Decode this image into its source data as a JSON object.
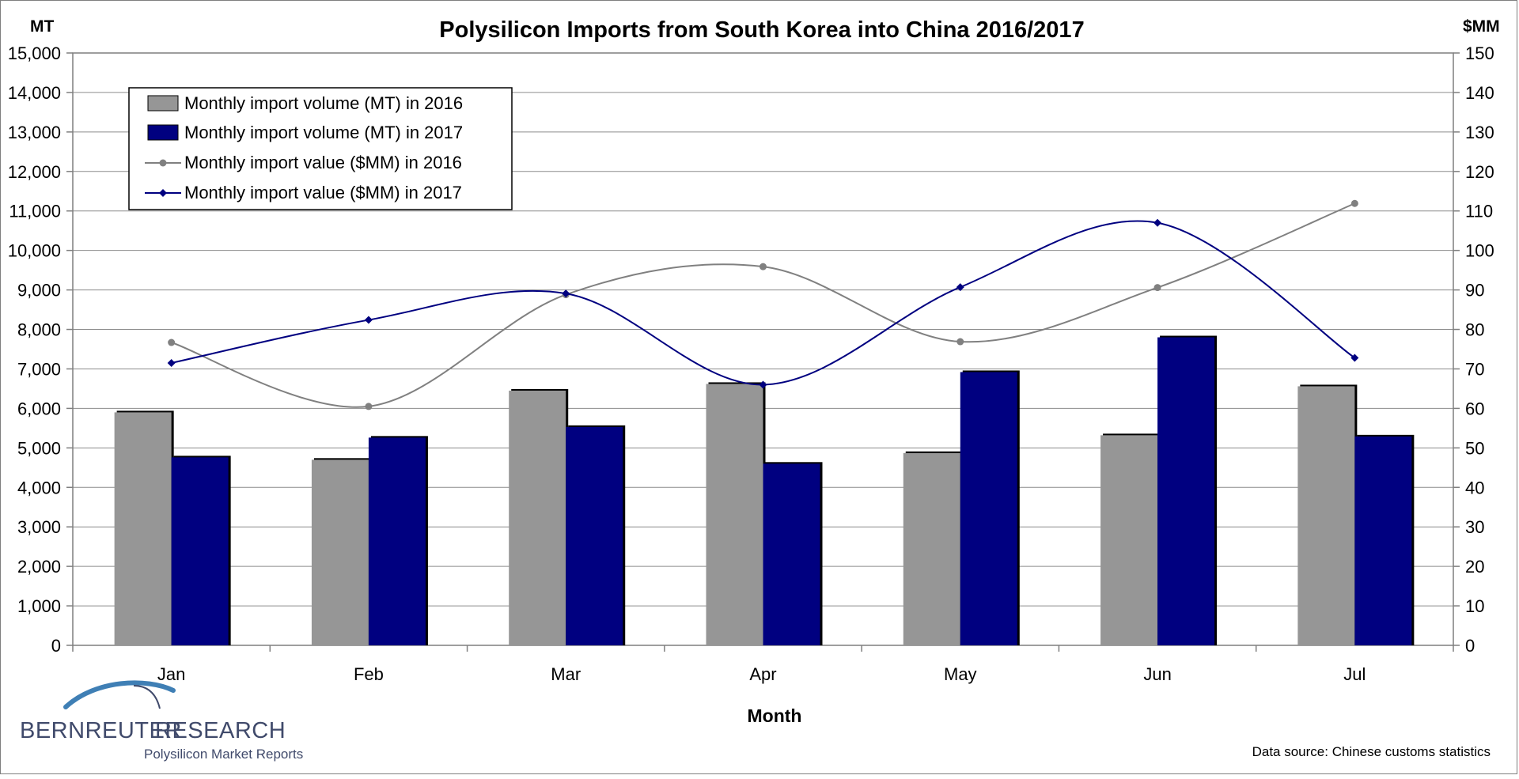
{
  "chart_data": {
    "type": "bar",
    "title": "Polysilicon Imports from South Korea into China 2016/2017",
    "y_left_unit": "MT",
    "y_right_unit": "$MM",
    "xlabel": "Month",
    "categories": [
      "Jan",
      "Feb",
      "Mar",
      "Apr",
      "May",
      "Jun",
      "Jul"
    ],
    "y_left_ticks": [
      "0",
      "1,000",
      "2,000",
      "3,000",
      "4,000",
      "5,000",
      "6,000",
      "7,000",
      "8,000",
      "9,000",
      "10,000",
      "11,000",
      "12,000",
      "13,000",
      "14,000",
      "15,000"
    ],
    "y_right_ticks": [
      "0",
      "10",
      "20",
      "30",
      "40",
      "50",
      "60",
      "70",
      "80",
      "90",
      "100",
      "110",
      "120",
      "130",
      "140",
      "150"
    ],
    "y_left_range": [
      0,
      15000
    ],
    "y_right_range": [
      0,
      150
    ],
    "grid": true,
    "legend_position": "top-left",
    "bar_series": [
      {
        "name": "Monthly import volume (MT) in 2016",
        "color": "#969696",
        "values": [
          5900,
          4700,
          6450,
          6620,
          4870,
          5320,
          6560
        ]
      },
      {
        "name": "Monthly import volume (MT) in 2017",
        "color": "#000080",
        "values": [
          4760,
          5260,
          5530,
          4600,
          6920,
          7800,
          5290
        ]
      }
    ],
    "line_series": [
      {
        "name": "Monthly import value ($MM) in 2016",
        "color": "#808080",
        "marker": "circle",
        "values": [
          76.7,
          60.5,
          88.8,
          95.9,
          76.9,
          90.6,
          111.9
        ]
      },
      {
        "name": "Monthly import value ($MM) in 2017",
        "color": "#000080",
        "marker": "diamond",
        "values": [
          71.5,
          82.4,
          89.1,
          66.0,
          90.7,
          107.0,
          72.8
        ]
      }
    ]
  },
  "branding": {
    "logo_left": "BERNREUTER",
    "logo_right": "RESEARCH",
    "logo_tagline": "Polysilicon Market Reports",
    "data_source": "Data source: Chinese customs statistics"
  }
}
